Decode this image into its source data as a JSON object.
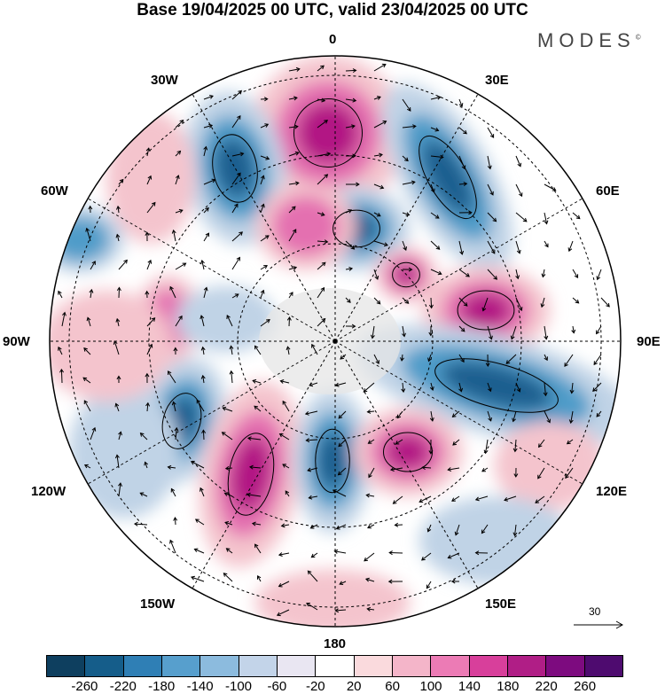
{
  "header": {
    "title": "Base 19/04/2025 00 UTC, valid 23/04/2025 00 UTC",
    "brand": "MODES",
    "brand_mark": "©"
  },
  "map": {
    "projection": "south-polar-stereographic",
    "longitude_labels": {
      "top": "0",
      "top_right": "30E",
      "upper_right": "60E",
      "right": "90E",
      "lower_right": "120E",
      "bottom_right": "150E",
      "bottom": "180",
      "bottom_left": "150W",
      "lower_left": "120W",
      "left": "90W",
      "upper_left": "60W",
      "top_left": "30W"
    },
    "reference_vector": "30",
    "colors": {
      "neg_strong": "#1f5f8f",
      "neg_mid": "#4f9cc9",
      "neg_weak": "#c0d3e6",
      "pos_weak": "#f4c4cd",
      "pos_mid": "#e46fb0",
      "pos_strong": "#b21784"
    }
  },
  "colorbar": {
    "ticks": [
      "-260",
      "-220",
      "-180",
      "-140",
      "-100",
      "-60",
      "-20",
      "20",
      "60",
      "100",
      "140",
      "180",
      "220",
      "260"
    ],
    "colors": [
      "#0e3f5f",
      "#155d8a",
      "#2f7fb5",
      "#579fcd",
      "#8cbbde",
      "#c3d4e9",
      "#e9e6f2",
      "#ffffff",
      "#fadadd",
      "#f4b5c9",
      "#ec7bb5",
      "#d83f9b",
      "#b01e86",
      "#7d0b7f",
      "#4e0b6f"
    ]
  }
}
